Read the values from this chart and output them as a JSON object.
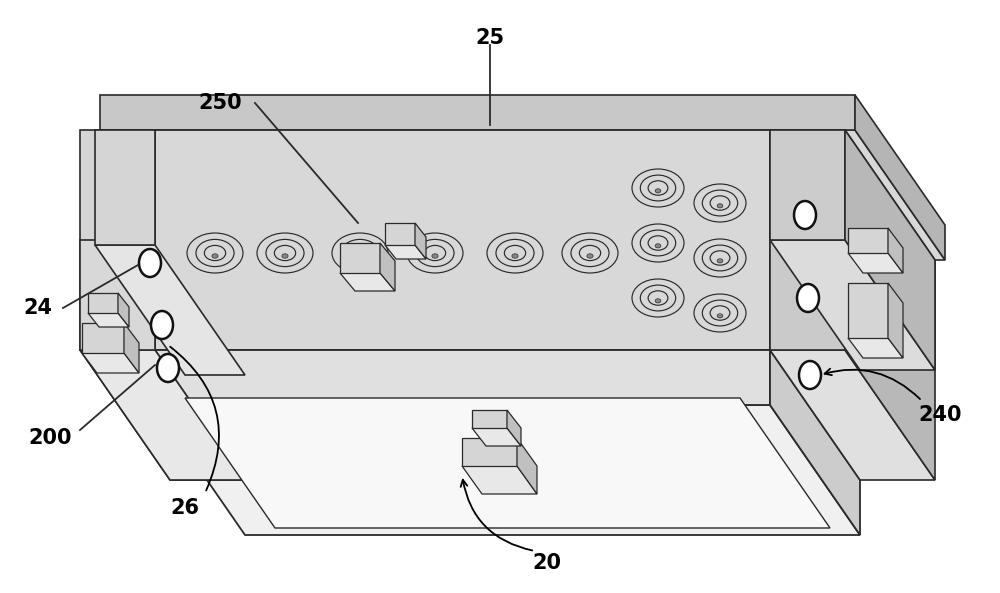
{
  "figure_width": 10.0,
  "figure_height": 5.93,
  "dpi": 100,
  "bg": "#ffffff",
  "lc": "#2a2a2a",
  "face_top": "#e8e8e8",
  "face_front": "#d0d0d0",
  "face_right": "#b8b8b8",
  "face_cavity": "#f2f2f2",
  "face_white": "#f8f8f8"
}
